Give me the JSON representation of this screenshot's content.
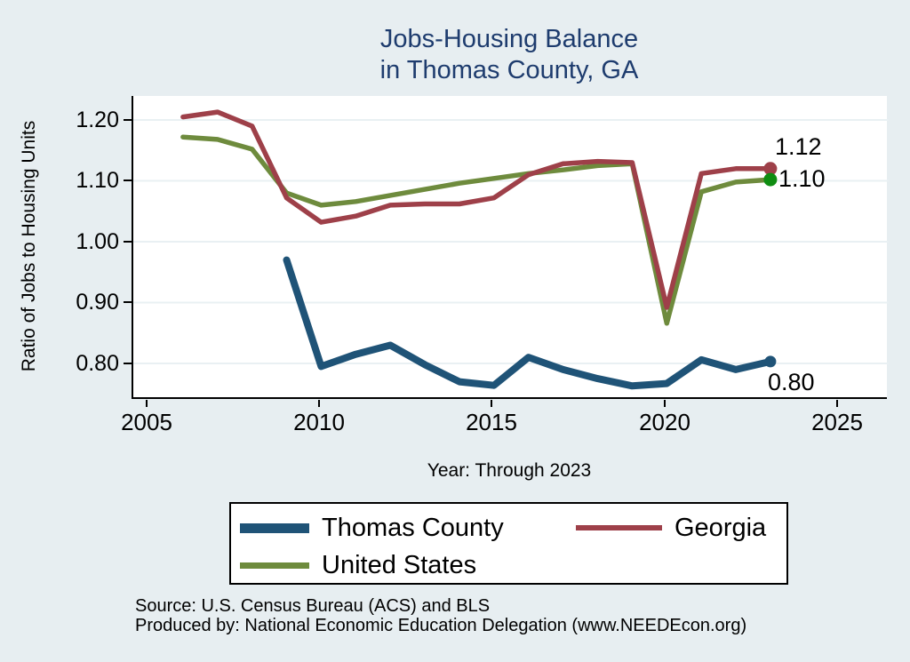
{
  "colors": {
    "background": "#e7eef1",
    "plot_background": "#ffffff",
    "gridline": "#e9f0f3",
    "axis": "#000000",
    "title_text": "#1e3c6e"
  },
  "title": {
    "line1": "Jobs-Housing Balance",
    "line2": "in Thomas County, GA"
  },
  "axes": {
    "ylabel": "Ratio of Jobs to Housing Units",
    "xlabel": "Year: Through 2023",
    "yticks": [
      "1.20",
      "1.10",
      "1.00",
      "0.90",
      "0.80"
    ],
    "xticks": [
      "2005",
      "2010",
      "2015",
      "2020",
      "2025"
    ]
  },
  "chart_data": {
    "type": "line",
    "title": "Jobs-Housing Balance in Thomas County, GA",
    "xlabel": "Year: Through 2023",
    "ylabel": "Ratio of Jobs to Housing Units",
    "xlim": [
      2005,
      2025
    ],
    "ylim": [
      0.8,
      1.2
    ],
    "xticks": [
      2005,
      2010,
      2015,
      2020,
      2025
    ],
    "yticks": [
      0.8,
      0.9,
      1.0,
      1.1,
      1.2
    ],
    "grid": "horizontal-only",
    "legend_position": "bottom",
    "series": [
      {
        "name": "Thomas County",
        "color": "#1f5377",
        "marker_color": "#1f5377",
        "end_label": "0.80",
        "x": [
          2009,
          2010,
          2011,
          2012,
          2013,
          2014,
          2015,
          2016,
          2017,
          2018,
          2019,
          2020,
          2021,
          2022,
          2023
        ],
        "values": [
          0.97,
          0.795,
          0.815,
          0.83,
          0.798,
          0.77,
          0.764,
          0.81,
          0.79,
          0.775,
          0.763,
          0.767,
          0.806,
          0.79,
          0.803
        ]
      },
      {
        "name": "Georgia",
        "color": "#9e4049",
        "marker_color": "#9e4049",
        "end_label": "1.12",
        "x": [
          2006,
          2007,
          2008,
          2009,
          2010,
          2011,
          2012,
          2013,
          2014,
          2015,
          2016,
          2017,
          2018,
          2019,
          2020,
          2021,
          2022,
          2023
        ],
        "values": [
          1.205,
          1.213,
          1.19,
          1.072,
          1.032,
          1.042,
          1.06,
          1.062,
          1.062,
          1.072,
          1.11,
          1.128,
          1.132,
          1.13,
          0.892,
          1.112,
          1.12,
          1.12
        ]
      },
      {
        "name": "United States",
        "color": "#6e8b3d",
        "marker_color": "#0f8d12",
        "end_label": "1.10",
        "x": [
          2006,
          2007,
          2008,
          2009,
          2010,
          2011,
          2012,
          2013,
          2014,
          2015,
          2016,
          2017,
          2018,
          2019,
          2020,
          2021,
          2022,
          2023
        ],
        "values": [
          1.172,
          1.168,
          1.152,
          1.08,
          1.06,
          1.066,
          1.076,
          1.086,
          1.096,
          1.104,
          1.112,
          1.118,
          1.125,
          1.128,
          0.866,
          1.082,
          1.098,
          1.102
        ]
      }
    ]
  },
  "footer": {
    "source": "Source: U.S. Census Bureau (ACS) and BLS",
    "produced_by": "Produced by: National Economic Education Delegation (www.NEEDEcon.org)"
  }
}
